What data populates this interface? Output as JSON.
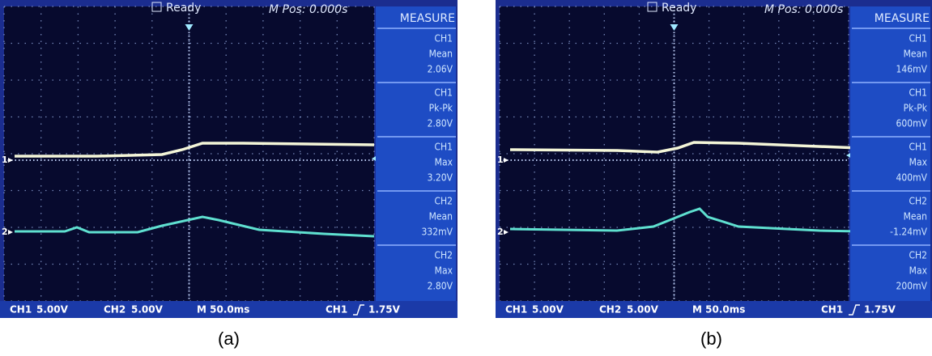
{
  "panels": [
    {
      "caption": "(a)",
      "status": "Ready",
      "position": "M Pos: 0.000s",
      "measure_title": "MEASURE",
      "measurements": [
        {
          "channel": "CH1",
          "label": "Mean",
          "value": "2.06V"
        },
        {
          "channel": "CH1",
          "label": "Pk-Pk",
          "value": "2.80V"
        },
        {
          "channel": "CH1",
          "label": "Max",
          "value": "3.20V"
        },
        {
          "channel": "CH2",
          "label": "Mean",
          "value": "332mV"
        },
        {
          "channel": "CH2",
          "label": "Max",
          "value": "2.80V"
        }
      ],
      "markers": [
        "1",
        "2"
      ],
      "footer": {
        "ch1": "CH1",
        "ch1_scale": "5.00V",
        "ch2": "CH2",
        "ch2_scale": "5.00V",
        "time": "M 50.0ms",
        "trigger_source": "CH1",
        "trigger_level": "1.75V"
      }
    },
    {
      "caption": "(b)",
      "status": "Ready",
      "position": "M Pos: 0.000s",
      "measure_title": "MEASURE",
      "measurements": [
        {
          "channel": "CH1",
          "label": "Mean",
          "value": "146mV"
        },
        {
          "channel": "CH1",
          "label": "Pk-Pk",
          "value": "600mV"
        },
        {
          "channel": "CH1",
          "label": "Max",
          "value": "400mV"
        },
        {
          "channel": "CH2",
          "label": "Mean",
          "value": "-1.24mV"
        },
        {
          "channel": "CH2",
          "label": "Max",
          "value": "200mV"
        }
      ],
      "markers": [
        "1",
        "2"
      ],
      "footer": {
        "ch1": "CH1",
        "ch1_scale": "5.00V",
        "ch2": "CH2",
        "ch2_scale": "5.00V",
        "time": "M 50.0ms",
        "trigger_source": "CH1",
        "trigger_level": "1.75V"
      }
    }
  ]
}
